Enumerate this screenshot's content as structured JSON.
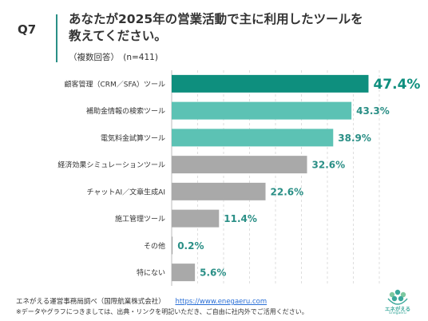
{
  "question": {
    "label": "Q7",
    "title_line1": "あなたが2025年の営業活動で主に利用したツールを",
    "title_line2": "教えてください。",
    "subtitle": "（複数回答）　(n=411)"
  },
  "chart_data": {
    "type": "bar",
    "orientation": "horizontal",
    "categories": [
      "顧客管理（CRM／SFA）ツール",
      "補助金情報の検索ツール",
      "電気料金試算ツール",
      "経済効果シミュレーションツール",
      "チャットAI／文章生成AI",
      "施工管理ツール",
      "その他",
      "特にない"
    ],
    "values": [
      47.4,
      43.3,
      38.9,
      32.6,
      22.6,
      11.4,
      0.2,
      5.6
    ],
    "labels": [
      "47.4%",
      "43.3%",
      "38.9%",
      "32.6%",
      "22.6%",
      "11.4%",
      "0.2%",
      "5.6%"
    ],
    "colors": [
      "#0e8f7e",
      "#5cc2b4",
      "#5cc2b4",
      "#a9a9a9",
      "#a9a9a9",
      "#a9a9a9",
      "#a9a9a9",
      "#a9a9a9"
    ],
    "label_colors": [
      "#0e8f7e",
      "#2a8f86",
      "#2a8f86",
      "#2a8f86",
      "#2a8f86",
      "#2a8f86",
      "#2a8f86",
      "#2a8f86"
    ],
    "xlim": [
      0,
      50
    ],
    "grid": "vertical-dashed",
    "legend": "none"
  },
  "footer": {
    "source": "エネがえる運営事務局調べ（国際航業株式会社）",
    "url": "https://www.enegaeru.com",
    "note": "※データやグラフにつきましては、出典・リンクを明記いただき、ご自由に社内外でご活用ください。"
  },
  "logo": {
    "text": "エネがえる",
    "sub": "Enegaeru",
    "color": "#3aa89b"
  }
}
